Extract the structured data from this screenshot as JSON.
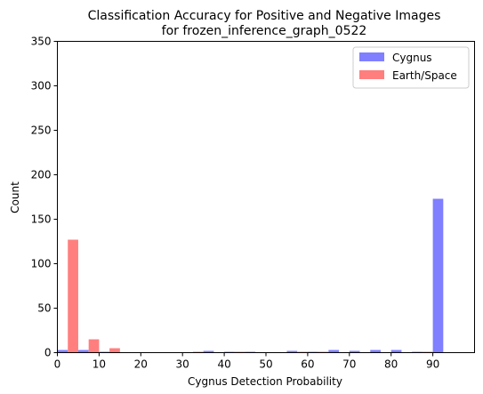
{
  "chart_data": {
    "type": "bar",
    "title": [
      "Classification Accuracy for Positive and Negative Images",
      "for frozen_inference_graph_0522"
    ],
    "xlabel": "Cygnus Detection Probability",
    "ylabel": "Count",
    "xlim": [
      0,
      100
    ],
    "ylim": [
      0,
      350
    ],
    "x_ticks": [
      0,
      10,
      20,
      30,
      40,
      50,
      60,
      70,
      80,
      90
    ],
    "y_ticks": [
      0,
      50,
      100,
      150,
      200,
      250,
      300,
      350
    ],
    "grid": false,
    "legend_position": "top-right",
    "bin_edges": [
      0,
      5,
      10,
      15,
      20,
      25,
      30,
      35,
      40,
      45,
      50,
      55,
      60,
      65,
      70,
      75,
      80,
      85,
      90,
      95,
      100
    ],
    "series": [
      {
        "name": "Cygnus",
        "color": "#7f7fff",
        "values": [
          3,
          3,
          1,
          0,
          0,
          0,
          0,
          2,
          1,
          1,
          0,
          2,
          1,
          3,
          2,
          3,
          3,
          1,
          173,
          0
        ]
      },
      {
        "name": "Earth/Space",
        "color": "#ff7f7f",
        "values": [
          127,
          15,
          5,
          0,
          0,
          0,
          1,
          0,
          1,
          0,
          0,
          1,
          1,
          0,
          0,
          0,
          0,
          1,
          0,
          0
        ]
      }
    ]
  }
}
